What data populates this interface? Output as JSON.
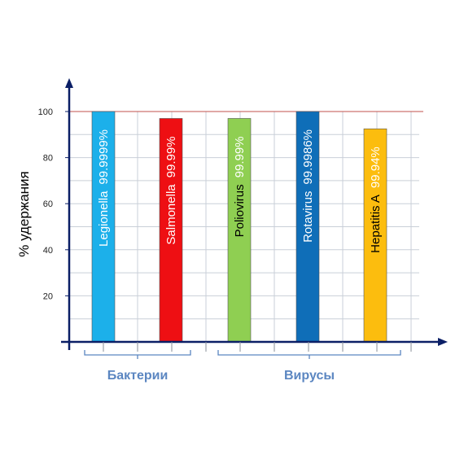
{
  "chart_data": {
    "type": "bar",
    "ylabel": "% удержания",
    "ylim": [
      0,
      100
    ],
    "yticks": [
      20,
      40,
      60,
      80,
      100
    ],
    "reference_line": {
      "value": 100,
      "color": "#c0504d"
    },
    "grid": true,
    "categories": [
      "Legionella",
      "Salmonella",
      "Poliovirus",
      "Rotavirus",
      "Hepatitis A"
    ],
    "values": [
      99.9999,
      99.99,
      99.99,
      99.9986,
      99.94
    ],
    "displayed_heights": [
      100,
      97,
      97,
      100,
      92.5
    ],
    "value_labels": [
      "99.9999%",
      "99.99%",
      "99.99%",
      "99.9986%",
      "99.94%"
    ],
    "colors": [
      "#1cb0ea",
      "#ee0f13",
      "#8fcf52",
      "#0f6eb8",
      "#fcbd0e"
    ],
    "label_colors": [
      {
        "name": "#ffffff",
        "value": "#ffffff"
      },
      {
        "name": "#ffffff",
        "value": "#ffffff"
      },
      {
        "name": "#000000",
        "value": "#ffffff"
      },
      {
        "name": "#ffffff",
        "value": "#ffffff"
      },
      {
        "name": "#000000",
        "value": "#ffffff"
      }
    ],
    "groups": [
      {
        "label": "Бактерии",
        "start": 0,
        "end": 1
      },
      {
        "label": "Вирусы",
        "start": 2,
        "end": 4
      }
    ]
  }
}
